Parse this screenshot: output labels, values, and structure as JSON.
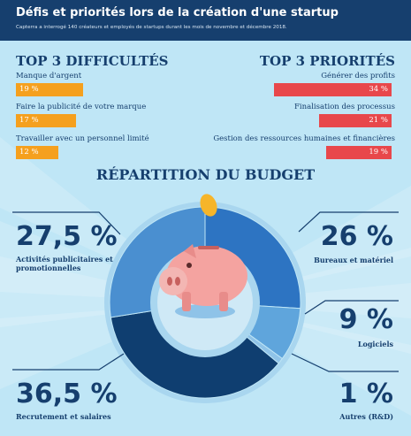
{
  "header": {
    "title": "Défis et priorités lors de la création d'une startup",
    "subtitle": "Capterra a interrogé 140 créateurs et employés de startups durant les mois de novembre et décembre 2018."
  },
  "difficulties": {
    "title": "TOP 3 DIFFICULTÉS",
    "items": [
      {
        "label": "Manque d'argent",
        "value_text": "19 %",
        "value": 19
      },
      {
        "label": "Faire la publicité de votre marque",
        "value_text": "17 %",
        "value": 17
      },
      {
        "label": "Travailler avec un personnel limité",
        "value_text": "12 %",
        "value": 12
      }
    ]
  },
  "priorities": {
    "title": "TOP 3 PRIORITÉS",
    "items": [
      {
        "label": "Générer des profits",
        "value_text": "34 %",
        "value": 34
      },
      {
        "label": "Finalisation des processus",
        "value_text": "21 %",
        "value": 21
      },
      {
        "label": "Gestion des ressources humaines et financières",
        "value_text": "19 %",
        "value": 19
      }
    ]
  },
  "budget": {
    "title": "RÉPARTITION DU BUDGET",
    "items": [
      {
        "value_text": "27,5 %",
        "line1": "Activités publicitaires et",
        "line2": "promotionnelles"
      },
      {
        "value_text": "26 %",
        "line1": "Bureaux et matériel",
        "line2": ""
      },
      {
        "value_text": "9 %",
        "line1": "Logiciels",
        "line2": ""
      },
      {
        "value_text": "1 %",
        "line1": "Autres (R&D)",
        "line2": ""
      },
      {
        "value_text": "36,5 %",
        "line1": "Recrutement et salaires",
        "line2": ""
      }
    ]
  },
  "colors": {
    "header": "#163f6e",
    "background": "#bfe6f6",
    "orange": "#f5a01e",
    "red": "#e8474b",
    "text": "#163f6e",
    "pie": [
      "#4a8fd0",
      "#2d74c2",
      "#5fa5dc",
      "#8fc3e8",
      "#0f3e70"
    ],
    "pig": "#f4a3a0",
    "coin": "#f6b52a"
  },
  "chart_data": [
    {
      "type": "bar",
      "title": "TOP 3 DIFFICULTÉS",
      "categories": [
        "Manque d'argent",
        "Faire la publicité de votre marque",
        "Travailler avec un personnel limité"
      ],
      "values": [
        19,
        17,
        12
      ]
    },
    {
      "type": "bar",
      "title": "TOP 3 PRIORITÉS",
      "categories": [
        "Générer des profits",
        "Finalisation des processus",
        "Gestion des ressources humaines et financières"
      ],
      "values": [
        34,
        21,
        19
      ]
    },
    {
      "type": "pie",
      "title": "RÉPARTITION DU BUDGET",
      "categories": [
        "Activités publicitaires et promotionnelles",
        "Bureaux et matériel",
        "Logiciels",
        "Autres (R&D)",
        "Recrutement et salaires"
      ],
      "values": [
        27.5,
        26,
        9,
        1,
        36.5
      ]
    }
  ]
}
